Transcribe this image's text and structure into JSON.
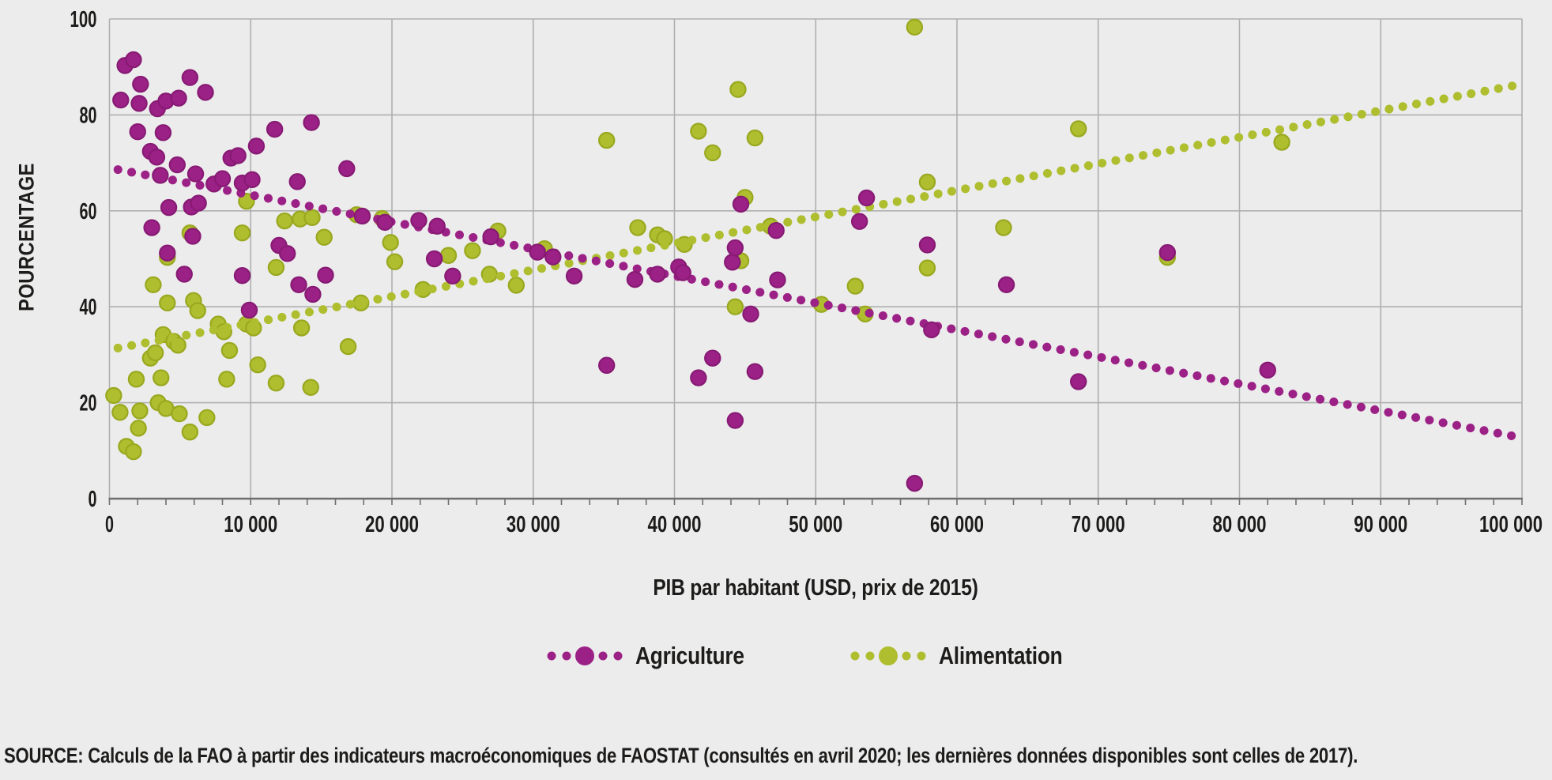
{
  "figure": {
    "x_axis_title": "PIB par habitant (USD, prix de 2015)",
    "y_axis_title": "POURCENTAGE",
    "source_text": "SOURCE: Calculs de la FAO à partir des indicateurs macroéconomiques de FAOSTAT (consultés en avril 2020; les dernières données disponibles sont celles de 2017).",
    "legend": [
      {
        "label": "Agriculture",
        "color": "#9C2186"
      },
      {
        "label": "Alimentation",
        "color": "#AEBE2E"
      }
    ]
  },
  "chart_data": {
    "type": "scatter",
    "title": "",
    "xlabel": "PIB par habitant (USD, prix de 2015)",
    "ylabel": "POURCENTAGE",
    "xlim": [
      0,
      100000
    ],
    "ylim": [
      0,
      100
    ],
    "grid": true,
    "legend_position": "bottom",
    "background": "#ECECEC",
    "grid_color": "#AFAFAF",
    "axis_color": "#6F6F6F",
    "text_color": "#1d1c1b",
    "x_ticks": {
      "values": [
        0,
        10000,
        20000,
        30000,
        40000,
        50000,
        60000,
        70000,
        80000,
        90000,
        100000
      ],
      "labels": [
        "0",
        "10 000",
        "20 000",
        "30 000",
        "40 000",
        "50 000",
        "60 000",
        "70 000",
        "80 000",
        "90 000",
        "100 000"
      ]
    },
    "x_minor_tick_step": 2000,
    "y_ticks": {
      "values": [
        0,
        20,
        40,
        60,
        80,
        100
      ],
      "labels": [
        "0",
        "20",
        "40",
        "60",
        "80",
        "100"
      ]
    },
    "series": [
      {
        "name": "Agriculture",
        "color": "#9C2186",
        "stroke": "#871A74",
        "trend": {
          "x": [
            600,
            99800
          ],
          "y": [
            68.6,
            12.8
          ]
        },
        "points": [
          [
            1100,
            90.3
          ],
          [
            1700,
            91.5
          ],
          [
            800,
            83.1
          ],
          [
            2100,
            82.4
          ],
          [
            2200,
            86.4
          ],
          [
            3400,
            81.3
          ],
          [
            4000,
            82.9
          ],
          [
            4900,
            83.5
          ],
          [
            5700,
            87.8
          ],
          [
            6800,
            84.7
          ],
          [
            2000,
            76.5
          ],
          [
            3800,
            76.3
          ],
          [
            11700,
            77.0
          ],
          [
            14300,
            78.4
          ],
          [
            2900,
            72.4
          ],
          [
            3350,
            71.2
          ],
          [
            4800,
            69.6
          ],
          [
            3600,
            67.4
          ],
          [
            6100,
            67.7
          ],
          [
            8600,
            71.0
          ],
          [
            9100,
            71.5
          ],
          [
            10400,
            73.5
          ],
          [
            7400,
            65.6
          ],
          [
            8000,
            66.7
          ],
          [
            9400,
            65.8
          ],
          [
            10100,
            66.5
          ],
          [
            13300,
            66.1
          ],
          [
            16800,
            68.8
          ],
          [
            4200,
            60.7
          ],
          [
            5800,
            60.8
          ],
          [
            6300,
            61.6
          ],
          [
            3000,
            56.5
          ],
          [
            5900,
            54.7
          ],
          [
            12000,
            52.8
          ],
          [
            12600,
            51.1
          ],
          [
            4100,
            51.2
          ],
          [
            5300,
            46.8
          ],
          [
            9400,
            46.5
          ],
          [
            9900,
            39.3
          ],
          [
            13400,
            44.6
          ],
          [
            14400,
            42.6
          ],
          [
            15300,
            46.6
          ],
          [
            17900,
            58.9
          ],
          [
            19500,
            57.6
          ],
          [
            21900,
            58.0
          ],
          [
            23200,
            56.8
          ],
          [
            23000,
            50.0
          ],
          [
            24300,
            46.4
          ],
          [
            27000,
            54.6
          ],
          [
            30300,
            51.4
          ],
          [
            31400,
            50.4
          ],
          [
            32900,
            46.4
          ],
          [
            35200,
            27.8
          ],
          [
            37200,
            45.7
          ],
          [
            38800,
            46.8
          ],
          [
            40300,
            48.3
          ],
          [
            40600,
            47.1
          ],
          [
            41700,
            25.2
          ],
          [
            42700,
            29.3
          ],
          [
            44100,
            49.3
          ],
          [
            44300,
            52.3
          ],
          [
            44700,
            61.4
          ],
          [
            44300,
            16.3
          ],
          [
            45400,
            38.5
          ],
          [
            45700,
            26.5
          ],
          [
            47300,
            45.6
          ],
          [
            47200,
            55.9
          ],
          [
            53100,
            57.8
          ],
          [
            53600,
            62.7
          ],
          [
            57000,
            3.2
          ],
          [
            57900,
            52.9
          ],
          [
            58200,
            35.2
          ],
          [
            63500,
            44.6
          ],
          [
            68600,
            24.4
          ],
          [
            74900,
            51.3
          ],
          [
            82000,
            26.8
          ]
        ]
      },
      {
        "name": "Alimentation",
        "color": "#AEBE2E",
        "stroke": "#99A81F",
        "trend": {
          "x": [
            600,
            99800
          ],
          "y": [
            31.4,
            86.3
          ]
        },
        "points": [
          [
            300,
            21.5
          ],
          [
            750,
            18.0
          ],
          [
            1200,
            10.9
          ],
          [
            1700,
            9.8
          ],
          [
            2050,
            14.7
          ],
          [
            2150,
            18.3
          ],
          [
            3450,
            20.0
          ],
          [
            4000,
            18.8
          ],
          [
            4950,
            17.7
          ],
          [
            5700,
            13.9
          ],
          [
            6900,
            16.9
          ],
          [
            1900,
            24.9
          ],
          [
            3650,
            25.2
          ],
          [
            2900,
            29.3
          ],
          [
            3250,
            30.4
          ],
          [
            3800,
            34.2
          ],
          [
            4550,
            32.8
          ],
          [
            4850,
            32.0
          ],
          [
            8300,
            24.9
          ],
          [
            8500,
            30.9
          ],
          [
            10500,
            27.9
          ],
          [
            11800,
            24.1
          ],
          [
            14250,
            23.2
          ],
          [
            16900,
            31.7
          ],
          [
            3100,
            44.6
          ],
          [
            4100,
            40.8
          ],
          [
            5950,
            41.3
          ],
          [
            6250,
            39.2
          ],
          [
            7700,
            36.4
          ],
          [
            8100,
            34.8
          ],
          [
            9700,
            36.4
          ],
          [
            10200,
            35.6
          ],
          [
            13600,
            35.6
          ],
          [
            17800,
            40.8
          ],
          [
            22200,
            43.6
          ],
          [
            4100,
            50.3
          ],
          [
            5700,
            55.4
          ],
          [
            9400,
            55.4
          ],
          [
            9700,
            62.0
          ],
          [
            11800,
            48.2
          ],
          [
            12400,
            57.9
          ],
          [
            13500,
            58.3
          ],
          [
            14350,
            58.6
          ],
          [
            15200,
            54.5
          ],
          [
            17500,
            59.2
          ],
          [
            19300,
            58.4
          ],
          [
            19900,
            53.4
          ],
          [
            20200,
            49.4
          ],
          [
            24000,
            50.7
          ],
          [
            25700,
            51.7
          ],
          [
            27500,
            55.8
          ],
          [
            26900,
            46.8
          ],
          [
            28800,
            44.5
          ],
          [
            30800,
            52.1
          ],
          [
            35200,
            74.7
          ],
          [
            37400,
            56.5
          ],
          [
            38800,
            55.0
          ],
          [
            39300,
            54.2
          ],
          [
            40700,
            53.0
          ],
          [
            41700,
            76.6
          ],
          [
            42700,
            72.1
          ],
          [
            44500,
            85.3
          ],
          [
            45700,
            75.2
          ],
          [
            45000,
            62.8
          ],
          [
            44300,
            40.0
          ],
          [
            44700,
            49.6
          ],
          [
            46800,
            56.8
          ],
          [
            50400,
            40.5
          ],
          [
            53500,
            38.5
          ],
          [
            52800,
            44.3
          ],
          [
            57000,
            98.3
          ],
          [
            57900,
            66.0
          ],
          [
            57900,
            48.1
          ],
          [
            63300,
            56.5
          ],
          [
            68600,
            77.1
          ],
          [
            74900,
            50.3
          ],
          [
            83000,
            74.3
          ]
        ]
      }
    ]
  }
}
